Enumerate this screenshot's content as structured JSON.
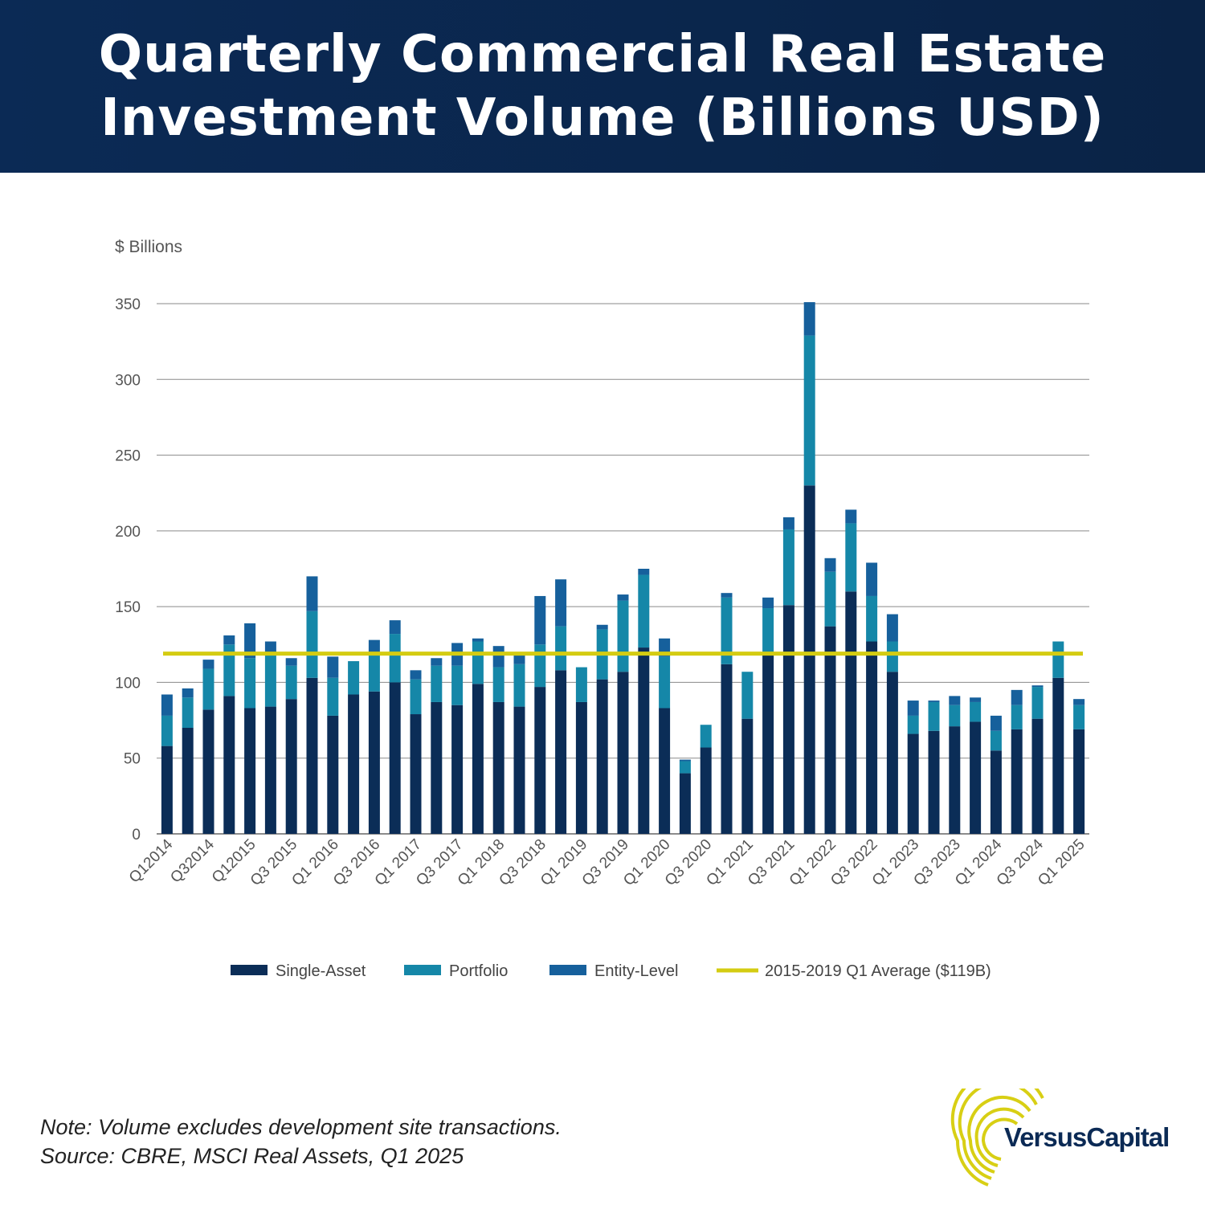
{
  "header": {
    "title_line1": "Quarterly  Commercial Real Estate",
    "title_line2": "Investment Volume (Billions USD)"
  },
  "footer": {
    "note": "Note: Volume excludes development site transactions.",
    "source": "Source: CBRE, MSCI Real Assets, Q1 2025"
  },
  "logo": {
    "text": "VersusCapital"
  },
  "colors": {
    "header_bg": "#0b2a55",
    "single_asset": "#0b2d57",
    "portfolio": "#1587a8",
    "entity_level": "#16609c",
    "average_line": "#d4cc12"
  },
  "chart_data": {
    "type": "bar",
    "stacked": true,
    "unit_label": "$ Billions",
    "ylim": [
      0,
      350
    ],
    "yticks": [
      0,
      50,
      100,
      150,
      200,
      250,
      300,
      350
    ],
    "grid": true,
    "legend_position": "bottom",
    "categories": [
      "Q1 2014",
      "Q2 2014",
      "Q3 2014",
      "Q4 2014",
      "Q1 2015",
      "Q2 2015",
      "Q3 2015",
      "Q4 2015",
      "Q1 2016",
      "Q2 2016",
      "Q3 2016",
      "Q4 2016",
      "Q1 2017",
      "Q2 2017",
      "Q3 2017",
      "Q4 2017",
      "Q1 2018",
      "Q2 2018",
      "Q3 2018",
      "Q4 2018",
      "Q1 2019",
      "Q2 2019",
      "Q3 2019",
      "Q4 2019",
      "Q1 2020",
      "Q2 2020",
      "Q3 2020",
      "Q4 2020",
      "Q1 2021",
      "Q2 2021",
      "Q3 2021",
      "Q4 2021",
      "Q1 2022",
      "Q2 2022",
      "Q3 2022",
      "Q4 2022",
      "Q1 2023",
      "Q2 2023",
      "Q3 2023",
      "Q4 2023",
      "Q1 2024",
      "Q2 2024",
      "Q3 2024",
      "Q4 2024",
      "Q1 2025"
    ],
    "tick_labels": [
      "Q12014",
      "Q32014",
      "Q12015",
      "Q3 2015",
      "Q1 2016",
      "Q3 2016",
      "Q1 2017",
      "Q3 2017",
      "Q1 2018",
      "Q3 2018",
      "Q1 2019",
      "Q3 2019",
      "Q1 2020",
      "Q3 2020",
      "Q1 2021",
      "Q3 2021",
      "Q1 2022",
      "Q3 2022",
      "Q1 2023",
      "Q3 2023",
      "Q1 2024",
      "Q3 2024",
      "Q1 2025"
    ],
    "series": [
      {
        "name": "Single-Asset",
        "values": [
          58,
          70,
          82,
          91,
          83,
          84,
          89,
          103,
          78,
          92,
          94,
          100,
          79,
          87,
          85,
          99,
          87,
          84,
          97,
          108,
          87,
          102,
          107,
          123,
          83,
          40,
          57,
          112,
          76,
          118,
          151,
          230,
          137,
          160,
          127,
          107,
          66,
          68,
          71,
          74,
          55,
          69,
          76,
          103,
          69
        ]
      },
      {
        "name": "Portfolio",
        "values": [
          20,
          20,
          27,
          34,
          33,
          36,
          22,
          44,
          25,
          22,
          26,
          32,
          23,
          24,
          26,
          28,
          23,
          28,
          28,
          29,
          23,
          33,
          47,
          48,
          34,
          8,
          15,
          44,
          31,
          31,
          50,
          99,
          36,
          45,
          30,
          20,
          12,
          19,
          14,
          13,
          13,
          16,
          21,
          24,
          16
        ]
      },
      {
        "name": "Entity-Level",
        "values": [
          14,
          6,
          6,
          6,
          23,
          7,
          5,
          23,
          14,
          0,
          8,
          9,
          6,
          5,
          15,
          2,
          14,
          6,
          32,
          31,
          0,
          3,
          4,
          4,
          12,
          1,
          0,
          3,
          0,
          7,
          8,
          22,
          9,
          9,
          22,
          18,
          10,
          1,
          6,
          3,
          10,
          10,
          1,
          0,
          4
        ]
      }
    ],
    "average_line": {
      "name": "2015-2019 Q1 Average ($119B)",
      "value": 119
    }
  }
}
